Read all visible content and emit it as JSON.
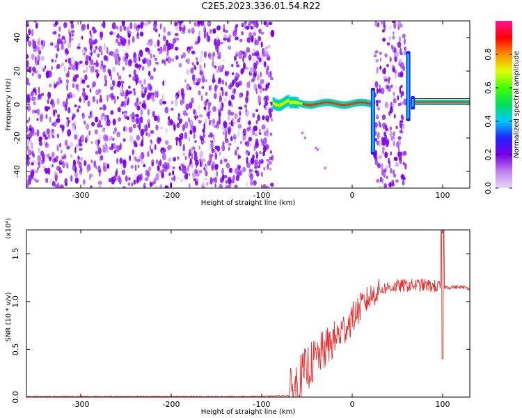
{
  "title": "C2E5.2023.336.01.54.R22",
  "chart_data": [
    {
      "type": "heatmap",
      "xlabel": "Height of straight line (km)",
      "ylabel": "Frequency (Hz)",
      "xlim": [
        -360,
        130
      ],
      "ylim": [
        -50,
        50
      ],
      "xticks": [
        -300,
        -200,
        -100,
        0,
        100
      ],
      "yticks": [
        -40,
        -20,
        0,
        20,
        40
      ],
      "colorbar": {
        "label": "Normalized spectral amplitude",
        "range": [
          0.0,
          1.0
        ],
        "ticks": [
          0.0,
          0.2,
          0.4,
          0.6,
          0.8
        ],
        "colors": [
          "#e8d8f8",
          "#c080f0",
          "#7a00e8",
          "#2020ff",
          "#00c8ff",
          "#00e060",
          "#40ff00",
          "#e0ff00",
          "#ff9000",
          "#ff0000",
          "#ff1493"
        ]
      },
      "regions": [
        {
          "x": [
            -360,
            -88
          ],
          "freq": [
            -50,
            50
          ],
          "amplitude": "noise"
        },
        {
          "x": [
            -88,
            23
          ],
          "freq": [
            -3,
            4
          ],
          "amplitude": "signal"
        },
        {
          "x": [
            25,
            60
          ],
          "freq": [
            -50,
            50
          ],
          "amplitude": "noise"
        },
        {
          "x": [
            65,
            130
          ],
          "freq": [
            0.5,
            3
          ],
          "amplitude": "signal"
        }
      ],
      "vertical_bursts": [
        {
          "x": 23,
          "freq": [
            -30,
            10
          ]
        },
        {
          "x": 62,
          "freq": [
            -10,
            32
          ]
        },
        {
          "x": 67,
          "freq": [
            -3,
            5
          ]
        }
      ],
      "stray_points": [
        {
          "x": -55,
          "y": -17
        },
        {
          "x": -52,
          "y": -20
        },
        {
          "x": -40,
          "y": -26
        },
        {
          "x": -38,
          "y": -27
        },
        {
          "x": -30,
          "y": -38
        }
      ]
    },
    {
      "type": "line",
      "xlabel": "Height of straight line (km)",
      "ylabel": "SNR (10 * v/v)",
      "yscale_label": "(x10⁴)",
      "xlim": [
        -360,
        130
      ],
      "ylim": [
        0,
        1.75
      ],
      "xticks": [
        -300,
        -200,
        -100,
        0,
        100
      ],
      "yticks": [
        0.0,
        0.5,
        1.0,
        1.5
      ],
      "color": "#e83030",
      "series": [
        {
          "x": [
            -360,
            -300,
            -200,
            -100,
            -70,
            -60,
            -50,
            -40,
            -30,
            -20,
            -10,
            0,
            10,
            20,
            30,
            40,
            50,
            60,
            70,
            80,
            90,
            98,
            100,
            102,
            110,
            120,
            130
          ],
          "y": [
            0.0,
            0.0,
            0.0,
            0.0,
            0.01,
            0.15,
            0.3,
            0.4,
            0.5,
            0.6,
            0.7,
            0.82,
            0.95,
            1.05,
            1.12,
            1.15,
            1.16,
            1.17,
            1.17,
            1.17,
            1.16,
            1.15,
            1.75,
            1.15,
            1.15,
            1.15,
            1.14
          ]
        }
      ]
    }
  ]
}
